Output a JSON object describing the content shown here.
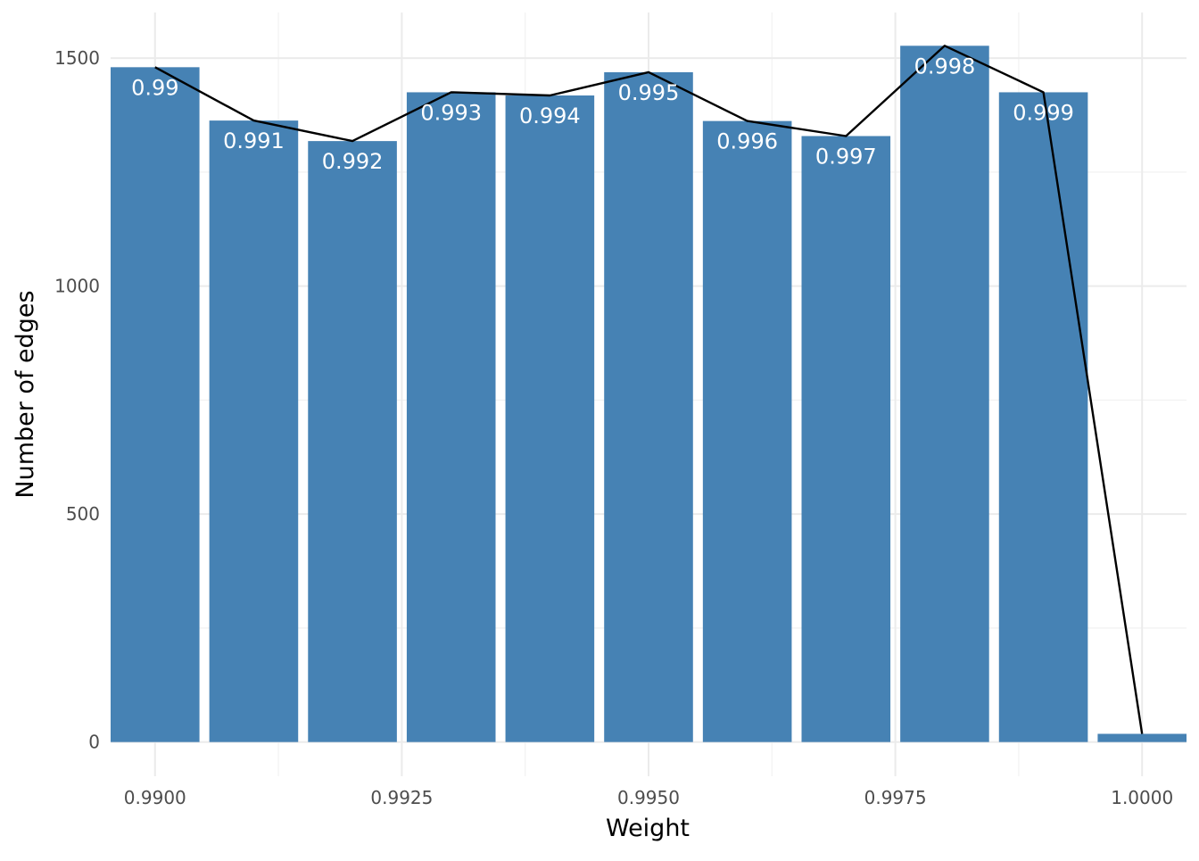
{
  "chart_data": {
    "type": "bar",
    "title": "",
    "xlabel": "Weight",
    "ylabel": "Number of edges",
    "x": [
      0.99,
      0.991,
      0.992,
      0.993,
      0.994,
      0.995,
      0.996,
      0.997,
      0.998,
      0.999,
      1.0
    ],
    "values": [
      1480,
      1363,
      1318,
      1425,
      1418,
      1469,
      1362,
      1329,
      1527,
      1425,
      18
    ],
    "bar_labels": [
      "0.99",
      "0.991",
      "0.992",
      "0.993",
      "0.994",
      "0.995",
      "0.996",
      "0.997",
      "0.998",
      "0.999",
      ""
    ],
    "line_overlay": {
      "x": [
        0.99,
        0.991,
        0.992,
        0.993,
        0.994,
        0.995,
        0.996,
        0.997,
        0.998,
        0.999,
        1.0
      ],
      "values": [
        1480,
        1363,
        1318,
        1425,
        1418,
        1469,
        1362,
        1329,
        1527,
        1425,
        18
      ],
      "color": "#000000"
    },
    "xlim": [
      0.98955,
      1.00045
    ],
    "ylim": [
      -75,
      1600
    ],
    "x_ticks": [
      0.99,
      0.9925,
      0.995,
      0.9975,
      1.0
    ],
    "x_tick_labels": [
      "0.9900",
      "0.9925",
      "0.9950",
      "0.9975",
      "1.0000"
    ],
    "y_ticks": [
      0,
      500,
      1000,
      1500
    ],
    "y_tick_labels": [
      "0",
      "500",
      "1000",
      "1500"
    ],
    "bar_color": "#4682B4",
    "grid": true,
    "legend": "none"
  }
}
